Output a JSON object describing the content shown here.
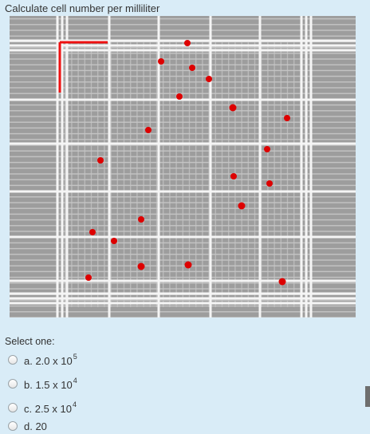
{
  "question": {
    "text": "Calculate cell number per milliliter"
  },
  "image": {
    "colors": {
      "background": "#9e9e9e",
      "gridline": "#ffffff",
      "cell_dot": "#dd0000",
      "marker": "#ee1111"
    }
  },
  "prompt": "Select one:",
  "options": [
    {
      "prefix": "a. 2.0 x 10",
      "exp": "5",
      "selected": false
    },
    {
      "prefix": "b. 1.5 x 10",
      "exp": "4",
      "selected": false
    },
    {
      "prefix": "c. 2.5 x 10",
      "exp": "4",
      "selected": false
    },
    {
      "prefix": "d. 20",
      "exp": "",
      "selected": false
    }
  ]
}
